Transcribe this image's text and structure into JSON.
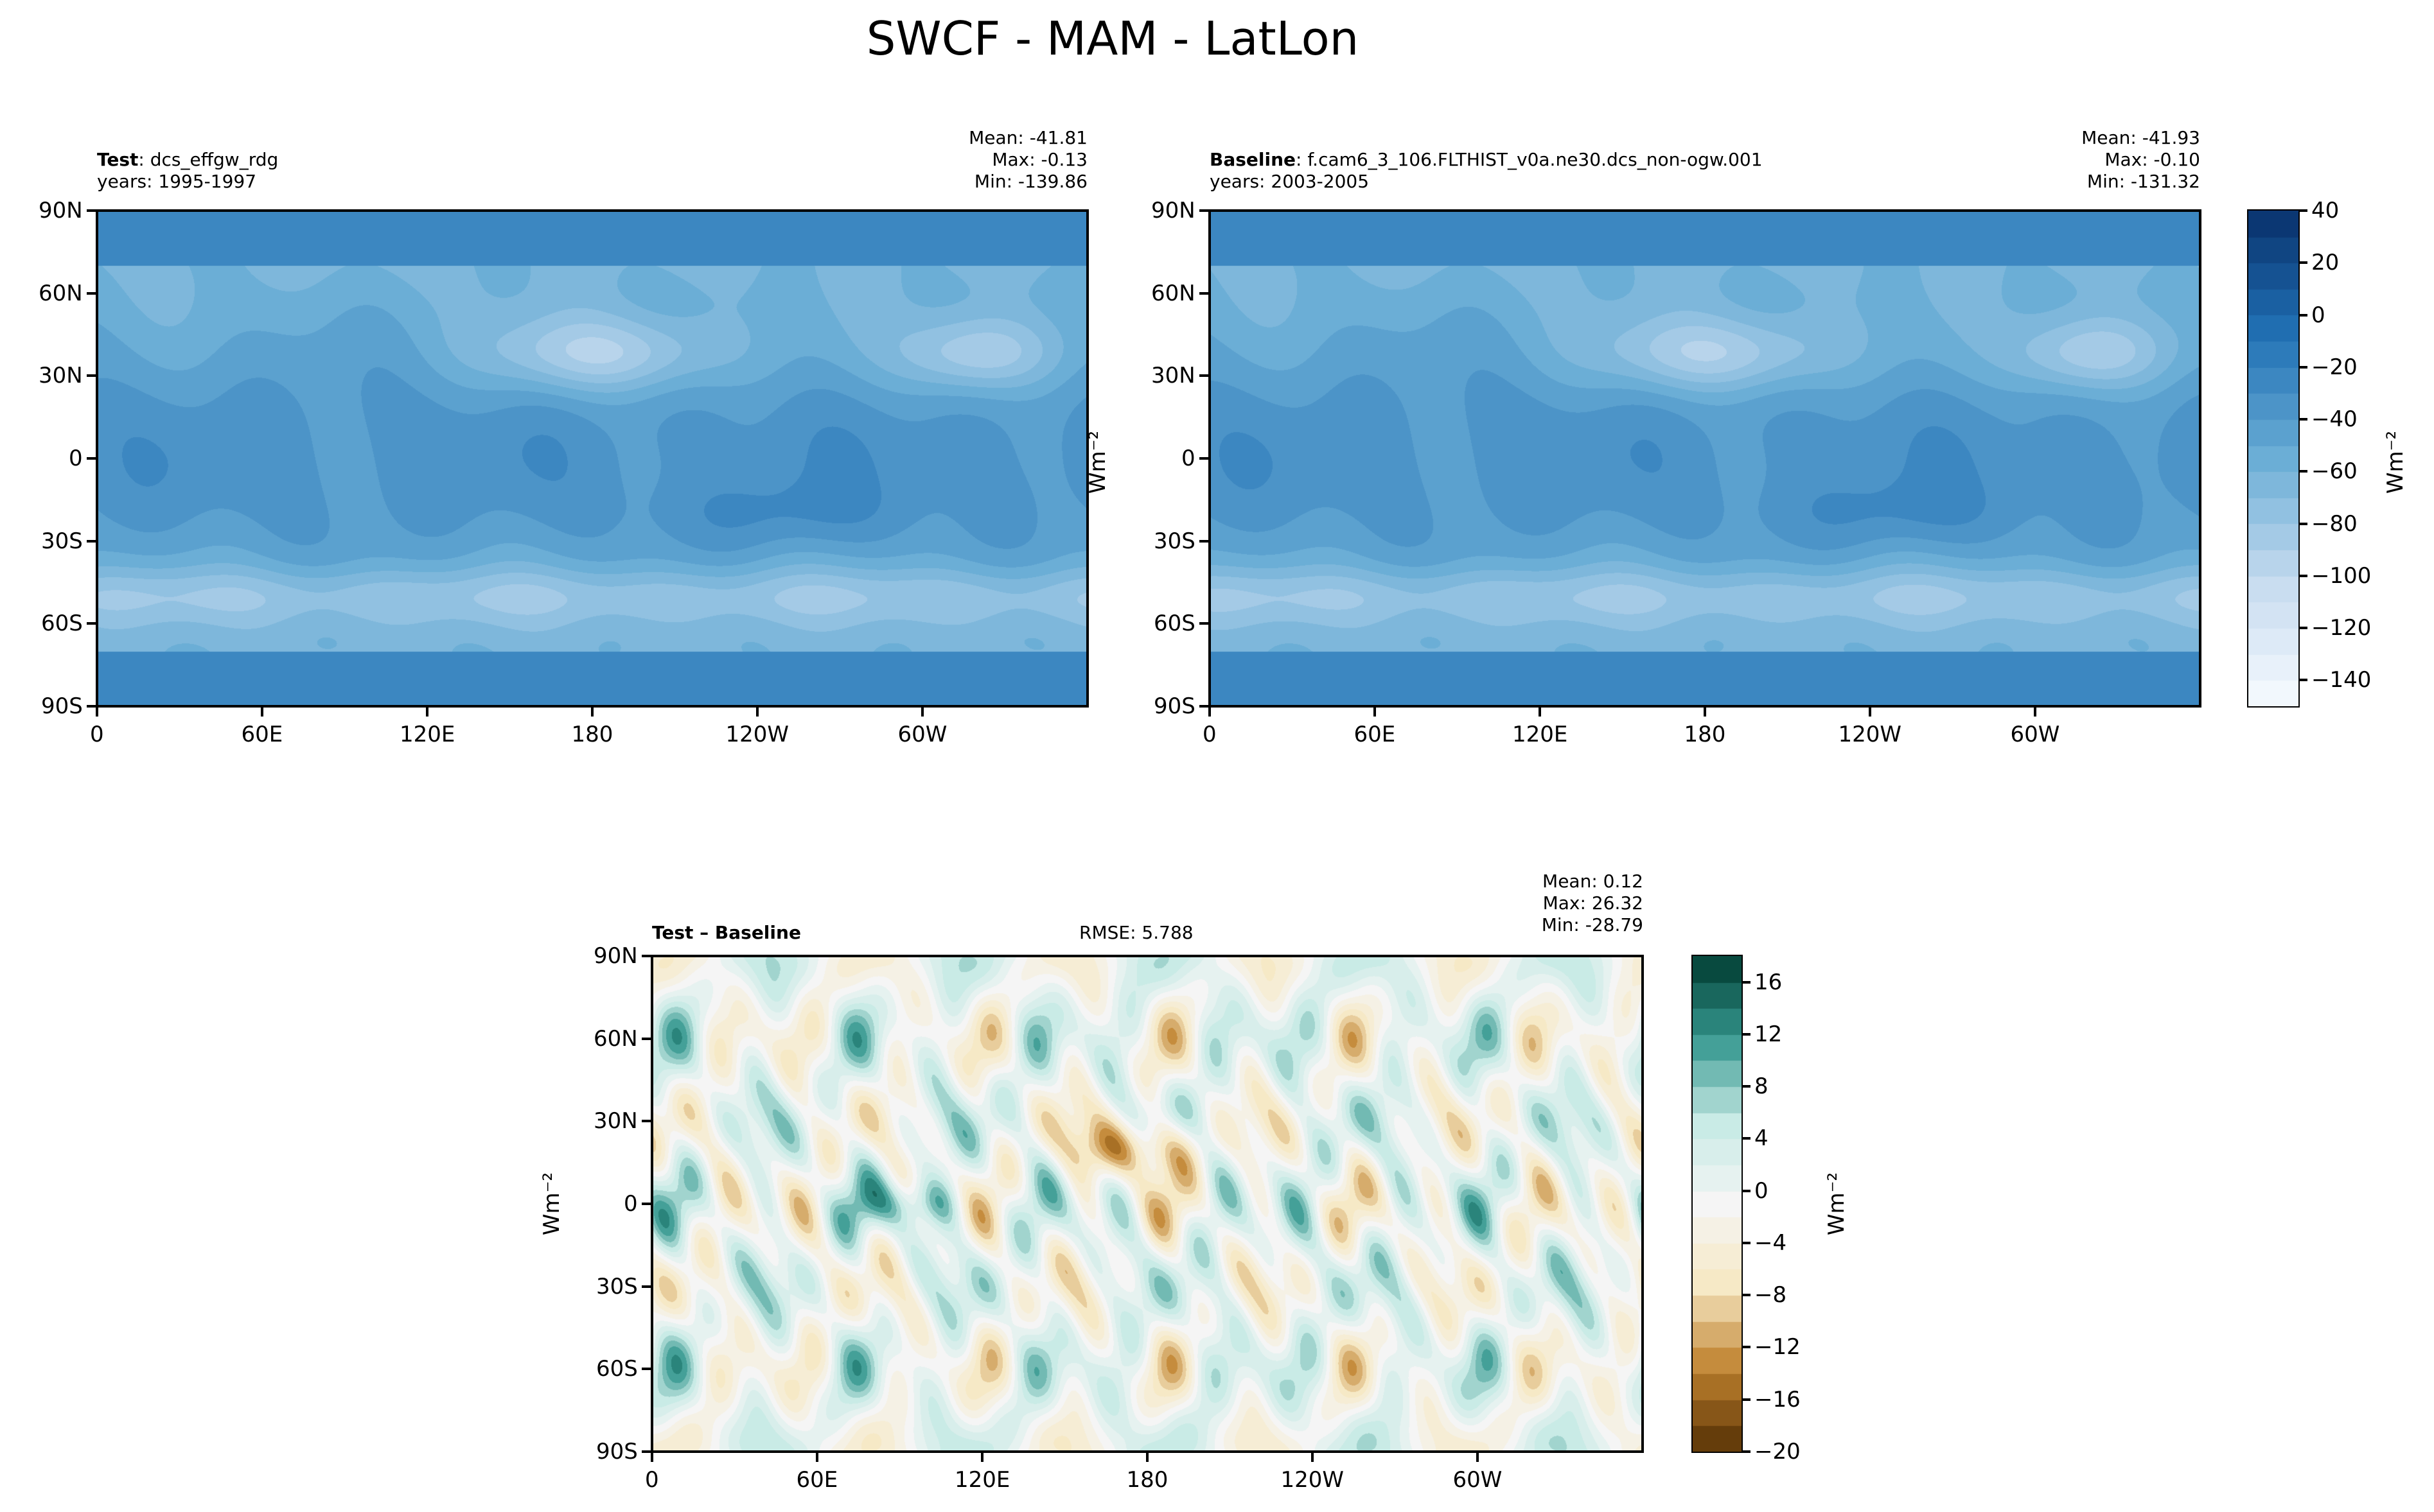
{
  "title": "SWCF - MAM - LatLon",
  "panels": [
    {
      "id": "test",
      "label_bold": "Test",
      "label_rest": ": dcs_effgw_rdg",
      "years": "years: 1995-1997",
      "mean": "Mean: -41.81",
      "max": "Max: -0.13",
      "min": "Min: -139.86"
    },
    {
      "id": "baseline",
      "label_bold": "Baseline",
      "label_rest": ": f.cam6_3_106.FLTHIST_v0a.ne30.dcs_non-ogw.001",
      "years": "years: 2003-2005",
      "mean": "Mean: -41.93",
      "max": "Max: -0.10",
      "min": "Min: -131.32"
    },
    {
      "id": "diff",
      "label_bold": "Test – Baseline",
      "rmse": "RMSE: 5.788",
      "mean": "Mean:  0.12",
      "max": "Max: 26.32",
      "min": "Min: -28.79"
    }
  ],
  "units": "Wm⁻²",
  "chart_data": [
    {
      "type": "heatmap",
      "title": "Test: dcs_effgw_rdg",
      "xlabel": "",
      "ylabel": "",
      "xticks": [
        "0",
        "60E",
        "120E",
        "180",
        "120W",
        "60W"
      ],
      "yticks": [
        "90N",
        "60N",
        "30N",
        "0",
        "30S",
        "60S",
        "90S"
      ],
      "xlim": [
        0,
        360
      ],
      "ylim": [
        -90,
        90
      ],
      "colorbar": {
        "levels_min": -150,
        "levels_max": 40,
        "step": 10,
        "ticks": [
          "40",
          "20",
          "0",
          "−20",
          "−40",
          "−60",
          "−80",
          "−100",
          "−120",
          "−140"
        ],
        "cmap": "Blues_r"
      }
    },
    {
      "type": "heatmap",
      "title": "Baseline: f.cam6_3_106.FLTHIST_v0a.ne30.dcs_non-ogw.001",
      "xticks": [
        "0",
        "60E",
        "120E",
        "180",
        "120W",
        "60W"
      ],
      "yticks": [
        "90N",
        "60N",
        "30N",
        "0",
        "30S",
        "60S",
        "90S"
      ],
      "xlim": [
        0,
        360
      ],
      "ylim": [
        -90,
        90
      ]
    },
    {
      "type": "heatmap",
      "title": "Test – Baseline",
      "xticks": [
        "0",
        "60E",
        "120E",
        "180",
        "120W",
        "60W"
      ],
      "yticks": [
        "90N",
        "60N",
        "30N",
        "0",
        "30S",
        "60S",
        "90S"
      ],
      "xlim": [
        0,
        360
      ],
      "ylim": [
        -90,
        90
      ],
      "colorbar": {
        "levels_min": -20,
        "levels_max": 18,
        "step": 2,
        "ticks": [
          "16",
          "12",
          "8",
          "4",
          "0",
          "−4",
          "−8",
          "−12",
          "−16",
          "−20"
        ],
        "cmap": "BrBG"
      }
    }
  ]
}
